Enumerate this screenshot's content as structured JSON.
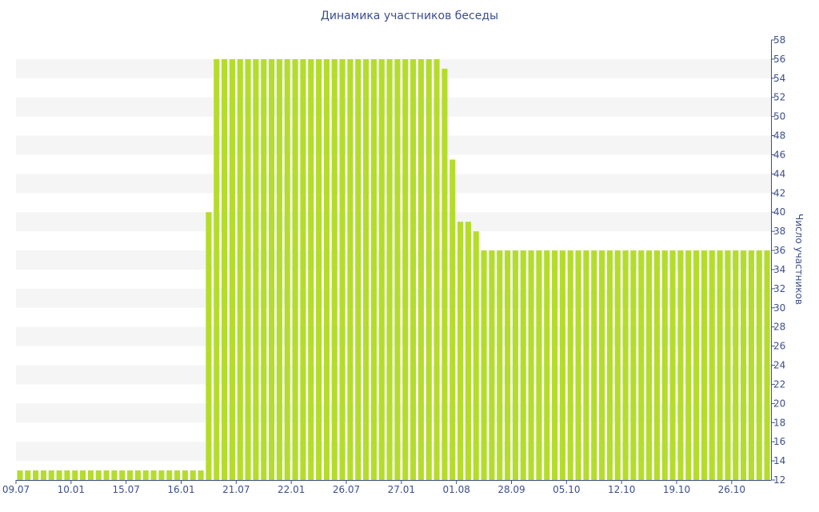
{
  "chart_data": {
    "type": "bar",
    "title": "Динамика участников беседы",
    "xlabel": "",
    "ylabel": "Число участников",
    "ylim": [
      12,
      58
    ],
    "y_tick_step": 2,
    "grid": "alternating horizontal bands",
    "bar_color": "#b5dc2b",
    "band_color": "#f5f5f5",
    "axis_color": "#3c4e8c",
    "x_tick_labels": [
      {
        "label": "09.07",
        "index": 0
      },
      {
        "label": "10.01",
        "index": 7
      },
      {
        "label": "15.07",
        "index": 14
      },
      {
        "label": "16.01",
        "index": 21
      },
      {
        "label": "21.07",
        "index": 28
      },
      {
        "label": "22.01",
        "index": 35
      },
      {
        "label": "26.07",
        "index": 42
      },
      {
        "label": "27.01",
        "index": 49
      },
      {
        "label": "01.08",
        "index": 56
      },
      {
        "label": "28.09",
        "index": 63
      },
      {
        "label": "05.10",
        "index": 70
      },
      {
        "label": "12.10",
        "index": 77
      },
      {
        "label": "19.10",
        "index": 84
      },
      {
        "label": "26.10",
        "index": 91
      }
    ],
    "values": [
      13,
      13,
      13,
      13,
      13,
      13,
      13,
      13,
      13,
      13,
      13,
      13,
      13,
      13,
      13,
      13,
      13,
      13,
      13,
      13,
      13,
      13,
      13,
      13,
      40,
      56,
      56,
      56,
      56,
      56,
      56,
      56,
      56,
      56,
      56,
      56,
      56,
      56,
      56,
      56,
      56,
      56,
      56,
      56,
      56,
      56,
      56,
      56,
      56,
      56,
      56,
      56,
      56,
      56,
      55,
      45.5,
      39,
      39,
      38,
      36,
      36,
      36,
      36,
      36,
      36,
      36,
      36,
      36,
      36,
      36,
      36,
      36,
      36,
      36,
      36,
      36,
      36,
      36,
      36,
      36,
      36,
      36,
      36,
      36,
      36,
      36,
      36,
      36,
      36,
      36,
      36,
      36,
      36,
      36,
      36,
      36
    ]
  }
}
